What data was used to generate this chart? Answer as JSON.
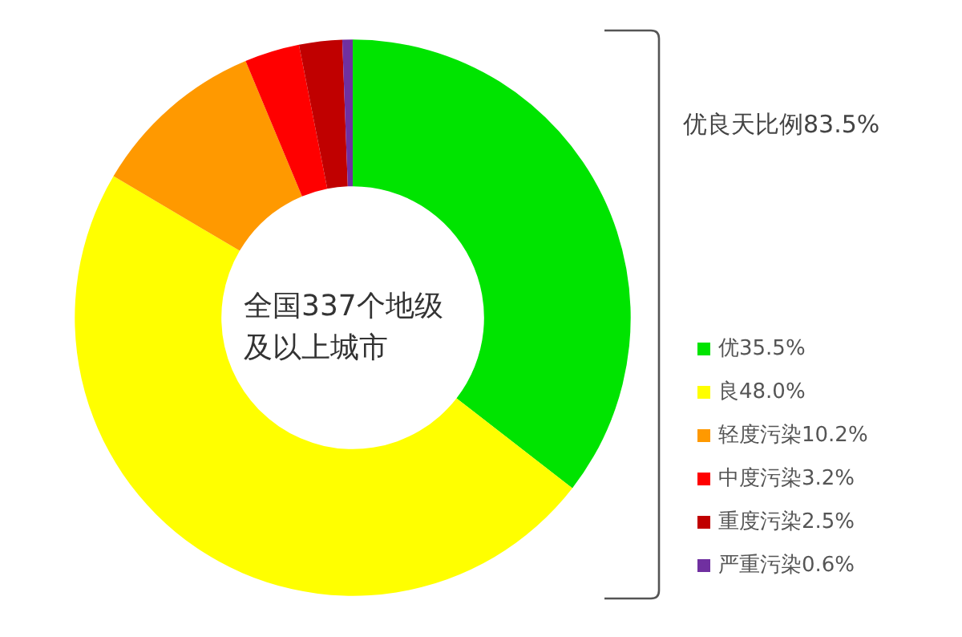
{
  "chart_data": {
    "type": "donut",
    "categories": [
      "优",
      "良",
      "轻度污染",
      "中度污染",
      "重度污染",
      "严重污染"
    ],
    "values": [
      35.5,
      48.0,
      10.2,
      3.2,
      2.5,
      0.6
    ],
    "value_labels": [
      "35.5%",
      "48.0%",
      "10.2%",
      "3.2%",
      "2.5%",
      "0.6%"
    ],
    "colors": [
      "#00e400",
      "#ffff00",
      "#ff9900",
      "#ff0000",
      "#c00000",
      "#7030a0"
    ],
    "legend": "right",
    "annotations": [
      "全国337个地级及以上城市",
      "优良天比例83.5%"
    ]
  }
}
